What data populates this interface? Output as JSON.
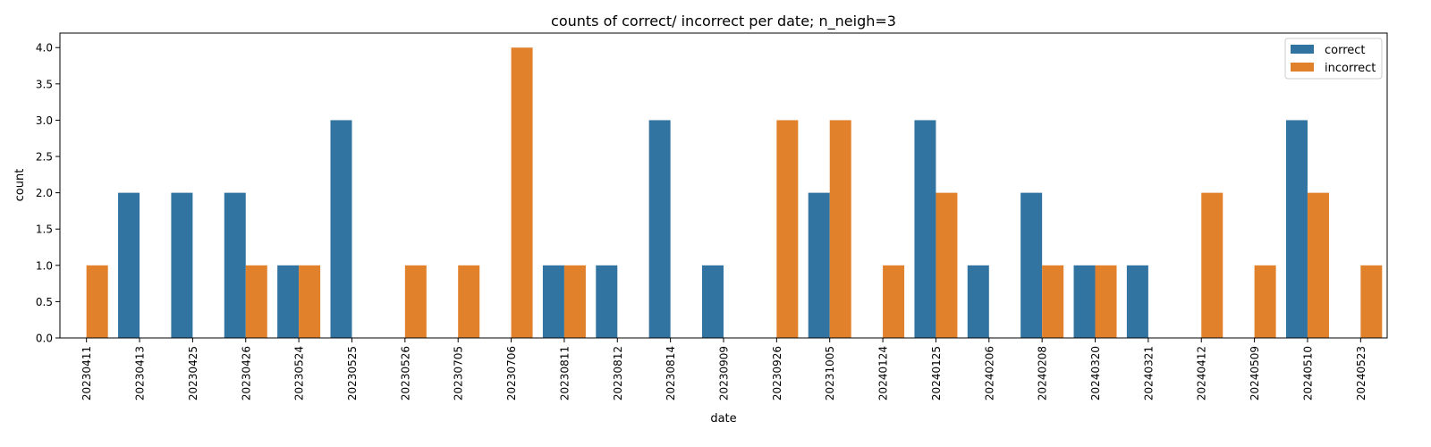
{
  "chart_data": {
    "type": "bar",
    "title": "counts of correct/ incorrect per date; n_neigh=3",
    "xlabel": "date",
    "ylabel": "count",
    "ylim": [
      0,
      4.2
    ],
    "yticks": [
      "0.0",
      "0.5",
      "1.0",
      "1.5",
      "2.0",
      "2.5",
      "3.0",
      "3.5",
      "4.0"
    ],
    "grid": false,
    "legend_position": "top-right",
    "categories": [
      "20230411",
      "20230413",
      "20230425",
      "20230426",
      "20230524",
      "20230525",
      "20230526",
      "20230705",
      "20230706",
      "20230811",
      "20230812",
      "20230814",
      "20230909",
      "20230926",
      "20231005",
      "20240124",
      "20240125",
      "20240206",
      "20240208",
      "20240320",
      "20240321",
      "20240412",
      "20240509",
      "20240510",
      "20240523"
    ],
    "series": [
      {
        "name": "correct",
        "color": "#3274a1",
        "values": [
          0,
          2,
          2,
          2,
          1,
          3,
          0,
          0,
          0,
          1,
          1,
          3,
          1,
          0,
          2,
          0,
          3,
          1,
          2,
          1,
          1,
          0,
          0,
          3,
          0
        ]
      },
      {
        "name": "incorrect",
        "color": "#e1812c",
        "values": [
          1,
          0,
          0,
          1,
          1,
          0,
          1,
          1,
          4,
          1,
          0,
          0,
          0,
          3,
          3,
          1,
          2,
          0,
          1,
          1,
          0,
          2,
          1,
          2,
          1
        ]
      }
    ]
  }
}
